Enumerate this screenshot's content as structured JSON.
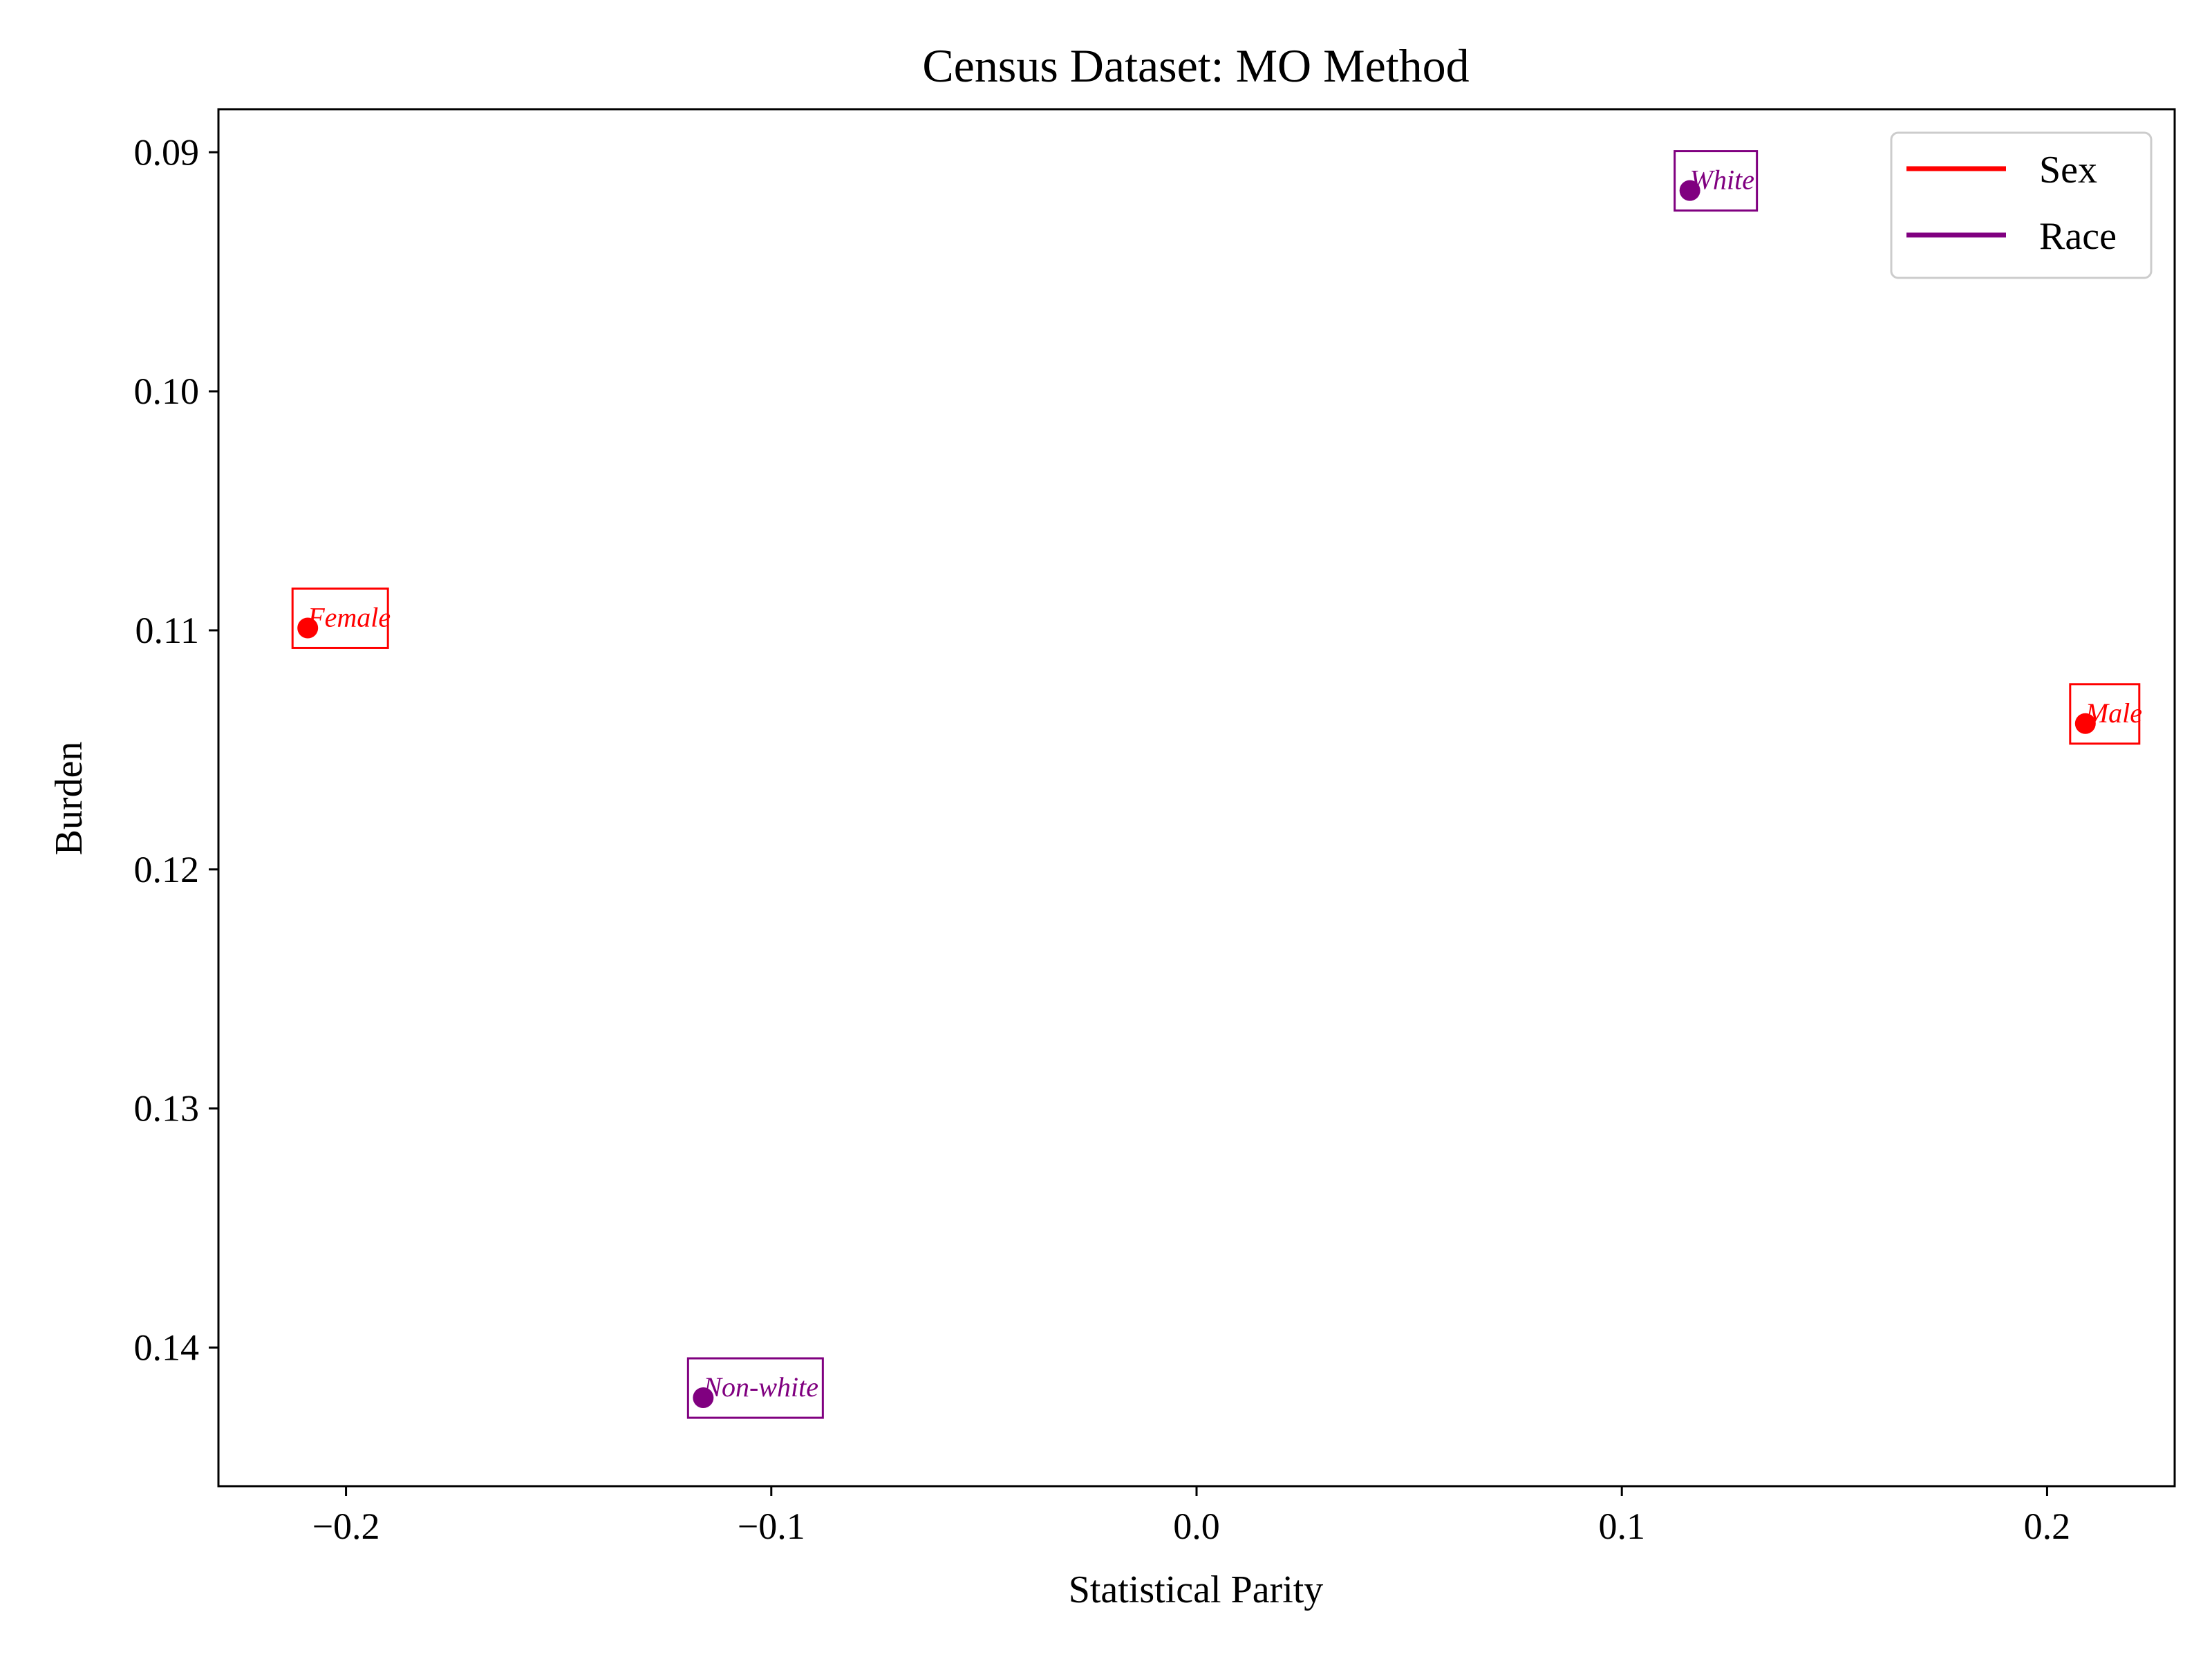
{
  "chart_data": {
    "type": "scatter",
    "title": "Census Dataset: MO Method",
    "xlabel": "Statistical Parity",
    "ylabel": "Burden",
    "xlim": [
      -0.23,
      0.23
    ],
    "ylim": [
      0.1458,
      0.0882
    ],
    "y_inverted": true,
    "x_ticks": [
      -0.2,
      -0.1,
      0.0,
      0.1,
      0.2
    ],
    "x_tick_labels": [
      "−0.2",
      "−0.1",
      "0.0",
      "0.1",
      "0.2"
    ],
    "y_ticks": [
      0.09,
      0.1,
      0.11,
      0.12,
      0.13,
      0.14
    ],
    "y_tick_labels": [
      "0.09",
      "0.10",
      "0.11",
      "0.12",
      "0.13",
      "0.14"
    ],
    "grid": false,
    "legend_position": "top-right",
    "series": [
      {
        "name": "Sex",
        "color": "#ff0000",
        "points": [
          {
            "label": "Female",
            "x": -0.209,
            "y": 0.1099
          },
          {
            "label": "Male",
            "x": 0.209,
            "y": 0.1139
          }
        ]
      },
      {
        "name": "Race",
        "color": "#800080",
        "points": [
          {
            "label": "White",
            "x": 0.116,
            "y": 0.0916
          },
          {
            "label": "Non-white",
            "x": -0.116,
            "y": 0.1421
          }
        ]
      }
    ]
  }
}
